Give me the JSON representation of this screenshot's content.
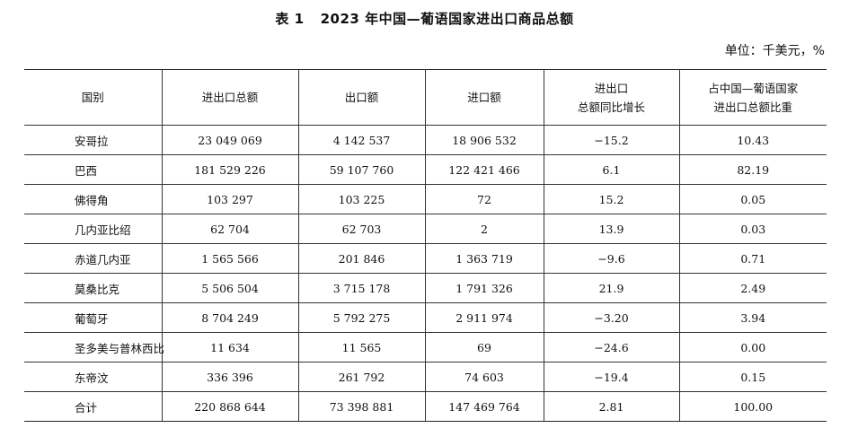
{
  "title": {
    "label": "表 1",
    "text": "2023 年中国—葡语国家进出口商品总额"
  },
  "unit": "单位：千美元，%",
  "table": {
    "headers": [
      {
        "line1": "国别",
        "line2": ""
      },
      {
        "line1": "进出口总额",
        "line2": ""
      },
      {
        "line1": "出口额",
        "line2": ""
      },
      {
        "line1": "进口额",
        "line2": ""
      },
      {
        "line1": "进出口",
        "line2": "总额同比增长"
      },
      {
        "line1": "占中国—葡语国家",
        "line2": "进出口总额比重"
      }
    ],
    "rows": [
      [
        "安哥拉",
        "23 049 069",
        "4 142 537",
        "18 906 532",
        "−15.2",
        "10.43"
      ],
      [
        "巴西",
        "181 529 226",
        "59 107 760",
        "122 421 466",
        "6.1",
        "82.19"
      ],
      [
        "佛得角",
        "103 297",
        "103 225",
        "72",
        "15.2",
        "0.05"
      ],
      [
        "几内亚比绍",
        "62 704",
        "62 703",
        "2",
        "13.9",
        "0.03"
      ],
      [
        "赤道几内亚",
        "1 565 566",
        "201 846",
        "1 363 719",
        "−9.6",
        "0.71"
      ],
      [
        "莫桑比克",
        "5 506 504",
        "3 715 178",
        "1 791 326",
        "21.9",
        "2.49"
      ],
      [
        "葡萄牙",
        "8 704 249",
        "5 792 275",
        "2 911 974",
        "−3.20",
        "3.94"
      ],
      [
        "圣多美与普林西比",
        "11 634",
        "11 565",
        "69",
        "−24.6",
        "0.00"
      ],
      [
        "东帝汶",
        "336 396",
        "261 792",
        "74 603",
        "−19.4",
        "0.15"
      ],
      [
        "合计",
        "220 868 644",
        "73 398 881",
        "147 469 764",
        "2.81",
        "100.00"
      ]
    ]
  }
}
